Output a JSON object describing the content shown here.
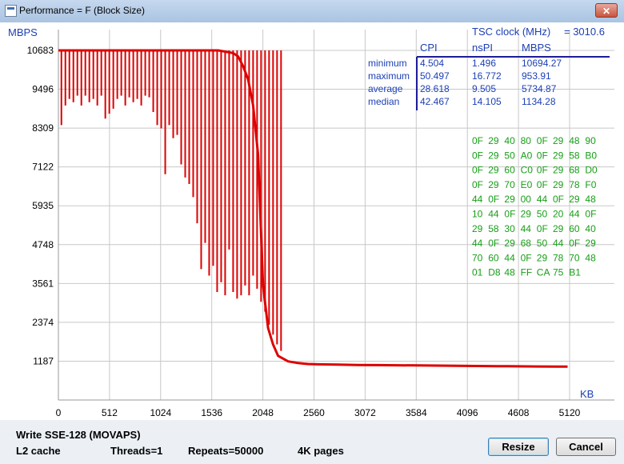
{
  "window": {
    "title": "Performance = F (Block Size)",
    "close_glyph": "✕"
  },
  "chart_data": {
    "type": "line",
    "ylabel": "MBPS",
    "xlabel": "KB",
    "xlim": [
      0,
      5120
    ],
    "ylim": [
      0,
      10683
    ],
    "xticks": [
      "0",
      "512",
      "1024",
      "1536",
      "2048",
      "2560",
      "3072",
      "3584",
      "4096",
      "4608",
      "5120"
    ],
    "yticks": [
      "10683",
      "9496",
      "8309",
      "7122",
      "5935",
      "4748",
      "3561",
      "2374",
      "1187"
    ],
    "series_color": "#dd0000",
    "series": [
      {
        "x": [
          0,
          100,
          200,
          300,
          400,
          500,
          600,
          700,
          800,
          900,
          1000,
          1100,
          1200,
          1300,
          1400,
          1500,
          1600,
          1700,
          1750,
          1800,
          1850,
          1900,
          1950,
          2000,
          2050,
          2100,
          2150,
          2200,
          2300,
          2400,
          2500,
          2600,
          2800,
          3000,
          3200,
          3400,
          3600,
          3800,
          4000,
          4200,
          4400,
          4600,
          4800,
          5000,
          5100
        ],
        "y": [
          10683,
          10683,
          10683,
          10683,
          10683,
          10683,
          10683,
          10683,
          10683,
          10683,
          10683,
          10683,
          10683,
          10683,
          10683,
          10683,
          10683,
          10630,
          10600,
          10500,
          10200,
          9800,
          9000,
          7500,
          3500,
          2200,
          1700,
          1350,
          1180,
          1130,
          1100,
          1090,
          1080,
          1070,
          1065,
          1060,
          1055,
          1050,
          1045,
          1040,
          1035,
          1030,
          1025,
          1020,
          1020
        ]
      }
    ],
    "dips": [
      {
        "x": 30,
        "y": 8400
      },
      {
        "x": 70,
        "y": 9000
      },
      {
        "x": 110,
        "y": 9200
      },
      {
        "x": 150,
        "y": 9100
      },
      {
        "x": 190,
        "y": 9300
      },
      {
        "x": 230,
        "y": 9000
      },
      {
        "x": 270,
        "y": 9300
      },
      {
        "x": 310,
        "y": 9100
      },
      {
        "x": 350,
        "y": 9200
      },
      {
        "x": 390,
        "y": 9000
      },
      {
        "x": 430,
        "y": 9300
      },
      {
        "x": 470,
        "y": 8600
      },
      {
        "x": 510,
        "y": 8750
      },
      {
        "x": 550,
        "y": 8900
      },
      {
        "x": 590,
        "y": 9200
      },
      {
        "x": 630,
        "y": 9300
      },
      {
        "x": 670,
        "y": 9000
      },
      {
        "x": 710,
        "y": 9250
      },
      {
        "x": 750,
        "y": 9100
      },
      {
        "x": 790,
        "y": 9200
      },
      {
        "x": 830,
        "y": 9000
      },
      {
        "x": 870,
        "y": 9300
      },
      {
        "x": 910,
        "y": 9250
      },
      {
        "x": 950,
        "y": 8800
      },
      {
        "x": 990,
        "y": 8400
      },
      {
        "x": 1030,
        "y": 8300
      },
      {
        "x": 1070,
        "y": 6900
      },
      {
        "x": 1110,
        "y": 8400
      },
      {
        "x": 1150,
        "y": 8000
      },
      {
        "x": 1190,
        "y": 8100
      },
      {
        "x": 1230,
        "y": 7200
      },
      {
        "x": 1270,
        "y": 6800
      },
      {
        "x": 1310,
        "y": 6600
      },
      {
        "x": 1350,
        "y": 6200
      },
      {
        "x": 1390,
        "y": 5400
      },
      {
        "x": 1430,
        "y": 4000
      },
      {
        "x": 1470,
        "y": 4800
      },
      {
        "x": 1510,
        "y": 3800
      },
      {
        "x": 1550,
        "y": 4100
      },
      {
        "x": 1590,
        "y": 3300
      },
      {
        "x": 1630,
        "y": 3600
      },
      {
        "x": 1670,
        "y": 3200
      },
      {
        "x": 1710,
        "y": 4600
      },
      {
        "x": 1750,
        "y": 3300
      },
      {
        "x": 1790,
        "y": 3100
      },
      {
        "x": 1830,
        "y": 3200
      },
      {
        "x": 1870,
        "y": 3500
      },
      {
        "x": 1910,
        "y": 3200
      },
      {
        "x": 1950,
        "y": 3800
      },
      {
        "x": 1990,
        "y": 3400
      },
      {
        "x": 2030,
        "y": 3000
      },
      {
        "x": 2070,
        "y": 2700
      },
      {
        "x": 2110,
        "y": 2300
      },
      {
        "x": 2150,
        "y": 2000
      },
      {
        "x": 2190,
        "y": 1700
      },
      {
        "x": 2230,
        "y": 1500
      }
    ],
    "stats": {
      "clock_label": "TSC clock (MHz)",
      "clock_value": "= 3010.6",
      "columns": [
        "CPI",
        "nsPI",
        "MBPS"
      ],
      "rows": [
        {
          "label": "minimum",
          "values": [
            "4.504",
            "1.496",
            "10694.27"
          ]
        },
        {
          "label": "maximum",
          "values": [
            "50.497",
            "16.772",
            "953.91"
          ]
        },
        {
          "label": "average",
          "values": [
            "28.618",
            "9.505",
            "5734.87"
          ]
        },
        {
          "label": "median",
          "values": [
            "42.467",
            "14.105",
            "1134.28"
          ]
        }
      ]
    },
    "hex_dump": [
      "0F 29 40 80 0F 29 48 90",
      "0F 29 50 A0 0F 29 58 B0",
      "0F 29 60 C0 0F 29 68 D0",
      "0F 29 70 E0 0F 29 78 F0",
      "44 0F 29 00 44 0F 29 48",
      "10 44 0F 29 50 20 44 0F",
      "29 58 30 44 0F 29 60 40",
      "44 0F 29 68 50 44 0F 29",
      "70 60 44 0F 29 78 70 48",
      "01 D8 48 FF CA 75 B1"
    ]
  },
  "footer": {
    "method": "Write SSE-128 (MOVAPS)",
    "cache": "L2 cache",
    "threads": "Threads=1",
    "repeats": "Repeats=50000",
    "pages": "4K pages",
    "resize_label": "Resize",
    "cancel_label": "Cancel"
  }
}
